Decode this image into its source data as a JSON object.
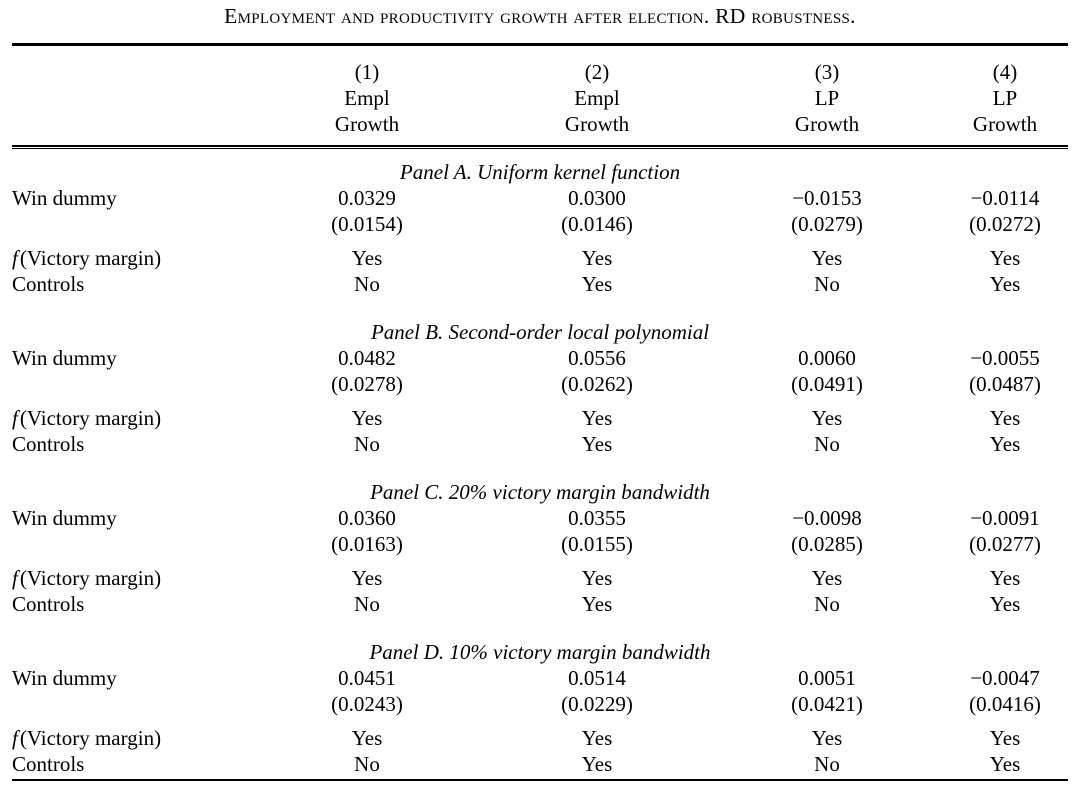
{
  "title": "Employment and productivity growth after election. RD robustness.",
  "header": {
    "columns": [
      {
        "number": "(1)",
        "line1": "Empl",
        "line2": "Growth"
      },
      {
        "number": "(2)",
        "line1": "Empl",
        "line2": "Growth"
      },
      {
        "number": "(3)",
        "line1": "LP",
        "line2": "Growth"
      },
      {
        "number": "(4)",
        "line1": "LP",
        "line2": "Growth"
      }
    ]
  },
  "row_labels": {
    "coefficient": "Win dummy",
    "victory_margin_f": "f",
    "victory_margin_rest": "(Victory margin)",
    "controls": "Controls"
  },
  "panels": [
    {
      "heading": "Panel A. Uniform kernel function",
      "win_dummy": [
        "0.0329",
        "0.0300",
        "−0.0153",
        "−0.0114"
      ],
      "std_errors": [
        "(0.0154)",
        "(0.0146)",
        "(0.0279)",
        "(0.0272)"
      ],
      "victory_margin": [
        "Yes",
        "Yes",
        "Yes",
        "Yes"
      ],
      "controls": [
        "No",
        "Yes",
        "No",
        "Yes"
      ]
    },
    {
      "heading": "Panel B. Second-order local polynomial",
      "win_dummy": [
        "0.0482",
        "0.0556",
        "0.0060",
        "−0.0055"
      ],
      "std_errors": [
        "(0.0278)",
        "(0.0262)",
        "(0.0491)",
        "(0.0487)"
      ],
      "victory_margin": [
        "Yes",
        "Yes",
        "Yes",
        "Yes"
      ],
      "controls": [
        "No",
        "Yes",
        "No",
        "Yes"
      ]
    },
    {
      "heading": "Panel C. 20% victory margin bandwidth",
      "win_dummy": [
        "0.0360",
        "0.0355",
        "−0.0098",
        "−0.0091"
      ],
      "std_errors": [
        "(0.0163)",
        "(0.0155)",
        "(0.0285)",
        "(0.0277)"
      ],
      "victory_margin": [
        "Yes",
        "Yes",
        "Yes",
        "Yes"
      ],
      "controls": [
        "No",
        "Yes",
        "No",
        "Yes"
      ]
    },
    {
      "heading": "Panel D. 10% victory margin bandwidth",
      "win_dummy": [
        "0.0451",
        "0.0514",
        "0.0051",
        "−0.0047"
      ],
      "std_errors": [
        "(0.0243)",
        "(0.0229)",
        "(0.0421)",
        "(0.0416)"
      ],
      "victory_margin": [
        "Yes",
        "Yes",
        "Yes",
        "Yes"
      ],
      "controls": [
        "No",
        "Yes",
        "No",
        "Yes"
      ]
    }
  ]
}
